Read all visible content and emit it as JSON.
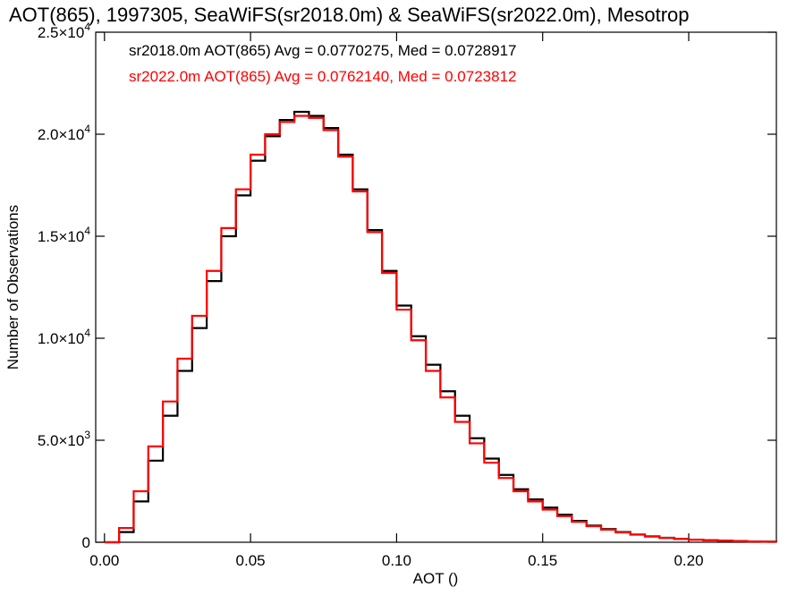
{
  "title": "AOT(865), 1997305, SeaWiFS(sr2018.0m) & SeaWiFS(sr2022.0m), Mesotrop",
  "chart_data": {
    "type": "histogram-step",
    "title": "AOT(865), 1997305, SeaWiFS(sr2018.0m) & SeaWiFS(sr2022.0m), Mesotrop",
    "xlabel": "AOT ()",
    "ylabel": "Number of Observations",
    "xlim": [
      -0.003,
      0.23
    ],
    "ylim": [
      0,
      25000
    ],
    "x_ticks": [
      {
        "value": 0.0,
        "label": "0.00"
      },
      {
        "value": 0.05,
        "label": "0.05"
      },
      {
        "value": 0.1,
        "label": "0.10"
      },
      {
        "value": 0.15,
        "label": "0.15"
      },
      {
        "value": 0.2,
        "label": "0.20"
      }
    ],
    "y_ticks": [
      {
        "value": 0,
        "label": "0",
        "base": "0",
        "exp": ""
      },
      {
        "value": 5000,
        "label": "5.0×10^3",
        "base": "5.0×10",
        "exp": "3"
      },
      {
        "value": 10000,
        "label": "1.0×10^4",
        "base": "1.0×10",
        "exp": "4"
      },
      {
        "value": 15000,
        "label": "1.5×10^4",
        "base": "1.5×10",
        "exp": "4"
      },
      {
        "value": 20000,
        "label": "2.0×10^4",
        "base": "2.0×10",
        "exp": "4"
      },
      {
        "value": 25000,
        "label": "2.5×10^4",
        "base": "2.5×10",
        "exp": "4"
      }
    ],
    "legend_placement": "top-left",
    "series": [
      {
        "name": "sr2018.0m",
        "color": "#000000",
        "label": "sr2018.0m AOT(865) Avg = 0.0770275, Med = 0.0728917",
        "x": [
          0.0,
          0.005,
          0.01,
          0.015,
          0.02,
          0.025,
          0.03,
          0.035,
          0.04,
          0.045,
          0.05,
          0.055,
          0.06,
          0.065,
          0.07,
          0.075,
          0.08,
          0.085,
          0.09,
          0.095,
          0.1,
          0.105,
          0.11,
          0.115,
          0.12,
          0.125,
          0.13,
          0.135,
          0.14,
          0.145,
          0.15,
          0.155,
          0.16,
          0.165,
          0.17,
          0.175,
          0.18,
          0.185,
          0.19,
          0.195,
          0.2,
          0.205,
          0.21,
          0.215,
          0.22,
          0.225,
          0.23
        ],
        "y": [
          0,
          500,
          2000,
          4000,
          6200,
          8400,
          10500,
          12800,
          15000,
          17000,
          18700,
          19900,
          20700,
          21100,
          20900,
          20300,
          19000,
          17300,
          15300,
          13300,
          11600,
          10100,
          8700,
          7400,
          6200,
          5100,
          4100,
          3300,
          2600,
          2100,
          1700,
          1350,
          1050,
          820,
          650,
          500,
          380,
          290,
          220,
          170,
          130,
          100,
          80,
          60,
          40,
          30,
          20
        ]
      },
      {
        "name": "sr2022.0m",
        "color": "#ff0000",
        "label": "sr2022.0m AOT(865) Avg = 0.0762140, Med = 0.0723812",
        "x": [
          0.0,
          0.005,
          0.01,
          0.015,
          0.02,
          0.025,
          0.03,
          0.035,
          0.04,
          0.045,
          0.05,
          0.055,
          0.06,
          0.065,
          0.07,
          0.075,
          0.08,
          0.085,
          0.09,
          0.095,
          0.1,
          0.105,
          0.11,
          0.115,
          0.12,
          0.125,
          0.13,
          0.135,
          0.14,
          0.145,
          0.15,
          0.155,
          0.16,
          0.165,
          0.17,
          0.175,
          0.18,
          0.185,
          0.19,
          0.195,
          0.2,
          0.205,
          0.21,
          0.215,
          0.22,
          0.225,
          0.23
        ],
        "y": [
          0,
          700,
          2500,
          4700,
          6900,
          9000,
          11100,
          13300,
          15400,
          17300,
          19000,
          20000,
          20600,
          20900,
          20800,
          20200,
          18900,
          17200,
          15200,
          13200,
          11400,
          9900,
          8400,
          7100,
          5900,
          4850,
          3900,
          3150,
          2500,
          2000,
          1600,
          1280,
          1000,
          790,
          620,
          480,
          370,
          280,
          215,
          165,
          125,
          95,
          75,
          55,
          40,
          28,
          18
        ]
      }
    ]
  }
}
